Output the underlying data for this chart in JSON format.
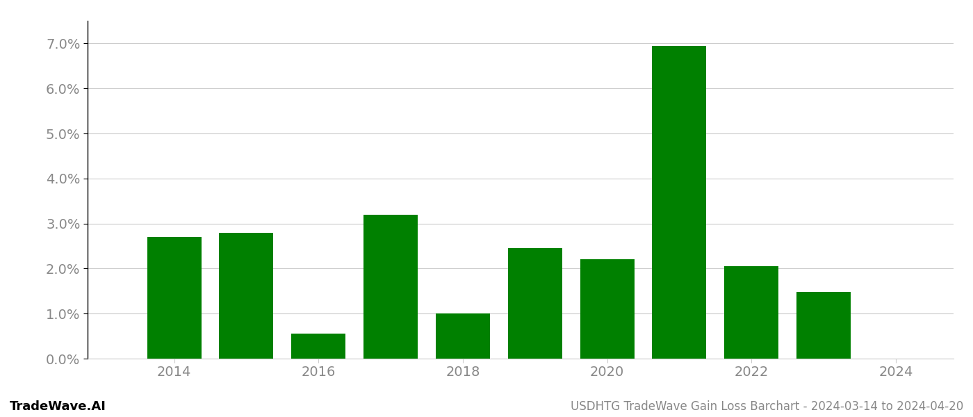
{
  "years": [
    2014,
    2015,
    2016,
    2017,
    2018,
    2019,
    2020,
    2021,
    2022,
    2023
  ],
  "values": [
    0.027,
    0.028,
    0.0055,
    0.032,
    0.01,
    0.0245,
    0.022,
    0.0695,
    0.0205,
    0.0148
  ],
  "bar_color": "#008000",
  "background_color": "#ffffff",
  "title": "USDHTG TradeWave Gain Loss Barchart - 2024-03-14 to 2024-04-20",
  "watermark_left": "TradeWave.AI",
  "ylim": [
    0.0,
    0.075
  ],
  "yticks": [
    0.0,
    0.01,
    0.02,
    0.03,
    0.04,
    0.05,
    0.06,
    0.07
  ],
  "ytick_labels": [
    "0.0%",
    "1.0%",
    "2.0%",
    "3.0%",
    "4.0%",
    "5.0%",
    "6.0%",
    "7.0%"
  ],
  "xtick_positions": [
    2014,
    2016,
    2018,
    2020,
    2022,
    2024
  ],
  "xlim": [
    2012.8,
    2024.8
  ],
  "grid_color": "#cccccc",
  "axis_label_color": "#888888",
  "footer_text_color": "#888888",
  "watermark_color": "#000000",
  "bar_width": 0.75
}
